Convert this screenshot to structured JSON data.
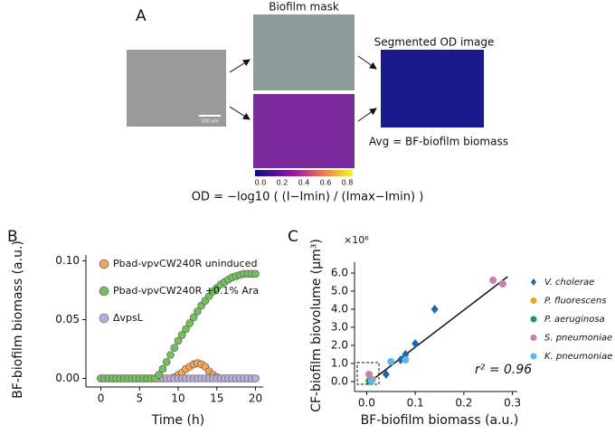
{
  "panel_a": {
    "label": "A",
    "mask_title": "Biofilm mask",
    "segmented_title": "Segmented OD image",
    "avg_text": "Avg = BF-biofilm biomass",
    "scale_bar": "100 µm",
    "colorbar_ticks": [
      "0.0",
      "0.2",
      "0.4",
      "0.6",
      "0.8"
    ],
    "formula": "OD = −log10 ( (I−Imin) / (Imax−Imin) )"
  },
  "chart_data": [
    {
      "type": "line",
      "panel": "B",
      "xlabel": "Time (h)",
      "ylabel": "BF-biofilm biomass (a.u.)",
      "x": [
        0,
        0.5,
        1,
        1.5,
        2,
        2.5,
        3,
        3.5,
        4,
        4.5,
        5,
        5.5,
        6,
        6.5,
        7,
        7.5,
        8,
        8.5,
        9,
        9.5,
        10,
        10.5,
        11,
        11.5,
        12,
        12.5,
        13,
        13.5,
        14,
        14.5,
        15,
        15.5,
        16,
        16.5,
        17,
        17.5,
        18,
        18.5,
        19,
        19.5,
        20
      ],
      "series": [
        {
          "name": "Pbad-vpvCW240R uninduced",
          "color": "#f2a45a",
          "values": [
            0,
            0,
            0,
            0,
            0,
            0,
            0,
            0,
            0,
            0,
            0,
            0,
            0,
            0,
            0,
            0,
            0,
            0,
            0,
            0.001,
            0.003,
            0.005,
            0.008,
            0.01,
            0.012,
            0.013,
            0.012,
            0.01,
            0.006,
            0.003,
            0.001,
            0,
            0,
            0,
            0,
            0,
            0,
            0,
            0,
            0,
            0
          ]
        },
        {
          "name": "Pbad-vpvCW240R +0.1% Ara",
          "color": "#72c25a",
          "values": [
            0,
            0,
            0,
            0,
            0,
            0,
            0,
            0,
            0,
            0,
            0,
            0,
            0,
            0,
            0,
            0.003,
            0.008,
            0.014,
            0.02,
            0.026,
            0.032,
            0.037,
            0.042,
            0.047,
            0.052,
            0.057,
            0.062,
            0.066,
            0.07,
            0.074,
            0.077,
            0.08,
            0.082,
            0.084,
            0.086,
            0.087,
            0.088,
            0.089,
            0.089,
            0.089,
            0.089
          ]
        },
        {
          "name": "ΔvpsL",
          "color": "#b9aedb",
          "values": [
            0,
            0,
            0,
            0,
            0,
            0,
            0,
            0,
            0,
            0,
            0,
            0,
            0,
            0,
            0,
            0,
            0,
            0,
            0,
            0,
            0,
            0,
            0,
            0,
            0,
            0,
            0,
            0,
            0,
            0,
            0,
            0,
            0,
            0,
            0,
            0,
            0,
            0,
            0,
            0,
            0
          ]
        }
      ],
      "xlim": [
        -1,
        21
      ],
      "xticks": [
        0,
        5,
        10,
        15,
        20
      ],
      "ylim": [
        -0.005,
        0.105
      ],
      "yticks": [
        {
          "value": 0,
          "label": "0.00"
        },
        {
          "value": 0.05,
          "label": "0.05"
        },
        {
          "value": 0.1,
          "label": "0.10"
        }
      ],
      "legend": "upper-left"
    },
    {
      "type": "scatter",
      "panel": "C",
      "xlabel": "BF-biofilm biomass (a.u.)",
      "ylabel": "CF-biofilm biovolume (µm³)",
      "y_multiplier": "×10⁶",
      "annotation": "r² = 0.96",
      "series": [
        {
          "name": "V. cholerae",
          "color": "#1f67a6",
          "marker": "diamond",
          "x": [
            0.14,
            0.1,
            0.08,
            0.07,
            0.04,
            0.01
          ],
          "values": [
            4.0,
            2.1,
            1.5,
            1.2,
            0.4,
            0.1
          ]
        },
        {
          "name": "P. fluorescens",
          "color": "#e3a52a",
          "marker": "circle",
          "x": [
            0.005,
            0.012
          ],
          "values": [
            0.05,
            0.12
          ]
        },
        {
          "name": "P. aeruginosa",
          "color": "#1a9a6a",
          "marker": "circle",
          "x": [
            0.006
          ],
          "values": [
            0.02
          ]
        },
        {
          "name": "S. pneumoniae",
          "color": "#cc7bb3",
          "marker": "circle",
          "x": [
            0.26,
            0.28,
            0.005
          ],
          "values": [
            5.6,
            5.4,
            0.4
          ]
        },
        {
          "name": "K. pneumoniae",
          "color": "#5cb6e8",
          "marker": "circle",
          "x": [
            0.08,
            0.05,
            0.01
          ],
          "values": [
            1.2,
            1.1,
            0.05
          ]
        }
      ],
      "fit": {
        "x": [
          0,
          0.29
        ],
        "y": [
          -0.15,
          5.8
        ]
      },
      "xlim": [
        -0.01,
        0.31
      ],
      "xticks": [
        {
          "value": 0,
          "label": "0.0"
        },
        0.1,
        0.2,
        0.3
      ],
      "ylim": [
        -0.4,
        6.6
      ],
      "yticks": [
        {
          "value": 0,
          "label": "0.0"
        },
        {
          "value": 1,
          "label": "1.0"
        },
        {
          "value": 2,
          "label": "2.0"
        },
        {
          "value": 3,
          "label": "3.0"
        },
        {
          "value": 4,
          "label": "4.0"
        },
        {
          "value": 5,
          "label": "5.0"
        },
        {
          "value": 6,
          "label": "6.0"
        }
      ],
      "legend": "right"
    }
  ]
}
